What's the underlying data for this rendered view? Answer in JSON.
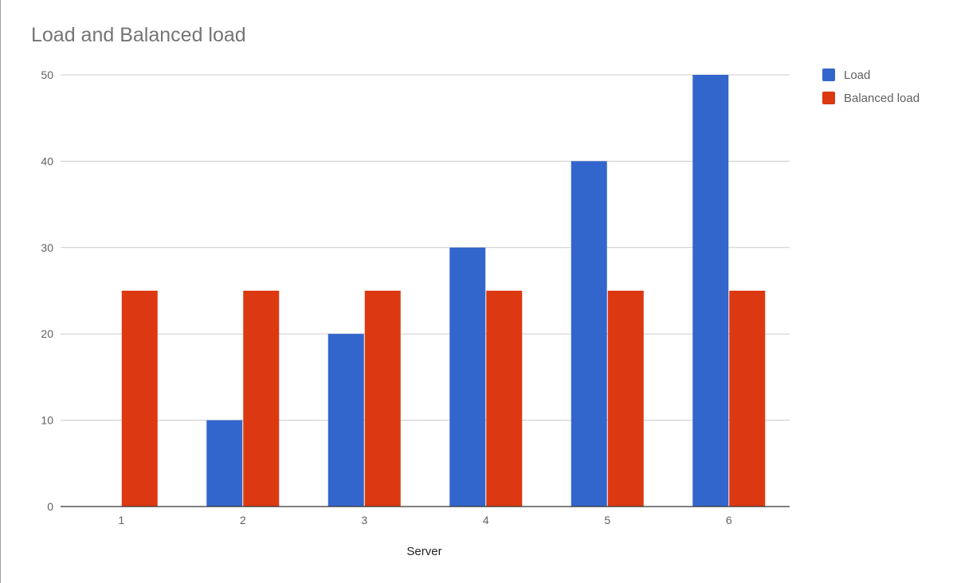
{
  "chart_data": {
    "type": "bar",
    "title": "Load and Balanced load",
    "xlabel": "Server",
    "ylabel": "",
    "categories": [
      "1",
      "2",
      "3",
      "4",
      "5",
      "6"
    ],
    "series": [
      {
        "name": "Load",
        "color": "#3366cc",
        "values": [
          0,
          10,
          20,
          30,
          40,
          50
        ]
      },
      {
        "name": "Balanced load",
        "color": "#dc3912",
        "values": [
          25,
          25,
          25,
          25,
          25,
          25
        ]
      }
    ],
    "ylim": [
      0,
      50
    ],
    "yticks": [
      "0",
      "10",
      "20",
      "30",
      "40",
      "50"
    ],
    "grid": true,
    "legend": "right"
  }
}
